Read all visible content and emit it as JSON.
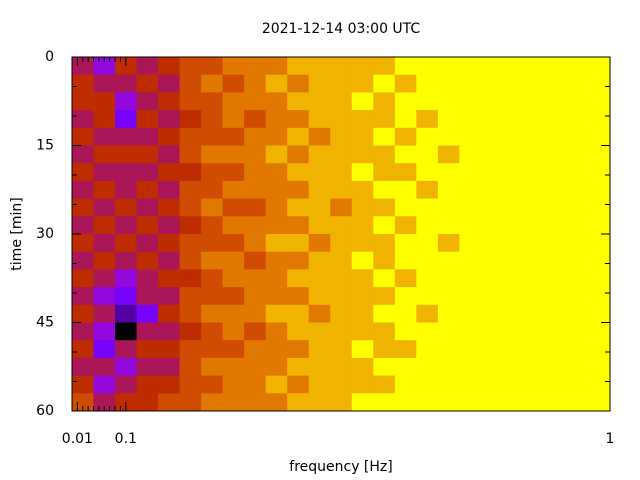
{
  "chart_data": {
    "type": "heatmap",
    "title": "2021-12-14 03:00 UTC",
    "x_label": "frequency [Hz]",
    "y_label": "time [min]",
    "xlim": [
      0,
      1
    ],
    "xticks": [
      0.01,
      0.1,
      1
    ],
    "xminorticks": [
      0.02,
      0.03,
      0.04,
      0.05,
      0.06,
      0.07,
      0.08,
      0.09
    ],
    "ylim": [
      60,
      0
    ],
    "yticks": [
      0,
      15,
      30,
      45,
      60
    ],
    "yminorticks": [
      5,
      10,
      20,
      25,
      35,
      40,
      50,
      55
    ],
    "xbins": [
      0,
      0.04,
      0.08,
      0.12,
      0.16,
      0.2,
      0.24,
      0.28,
      0.32,
      0.36,
      0.4,
      0.44,
      0.48,
      0.52,
      0.56,
      0.6,
      0.64,
      0.68,
      0.72,
      0.76,
      0.8,
      0.84,
      0.88,
      0.92,
      0.96,
      1
    ],
    "ybins": [
      0,
      3,
      6,
      9,
      12,
      15,
      18,
      21,
      24,
      27,
      30,
      33,
      36,
      39,
      42,
      45,
      48,
      51,
      54,
      57,
      60
    ],
    "z": [
      [
        4,
        3,
        5,
        4,
        5,
        6,
        6,
        7,
        7,
        7,
        8,
        8,
        8,
        8,
        8,
        9,
        9,
        9,
        9,
        9,
        9,
        9,
        9,
        9,
        9
      ],
      [
        5,
        4,
        4,
        5,
        4,
        6,
        7,
        6,
        7,
        8,
        7,
        8,
        8,
        8,
        9,
        8,
        9,
        9,
        9,
        9,
        9,
        9,
        9,
        9,
        9
      ],
      [
        5,
        5,
        3,
        4,
        5,
        6,
        6,
        7,
        7,
        7,
        8,
        8,
        8,
        9,
        8,
        9,
        9,
        9,
        9,
        9,
        9,
        9,
        9,
        9,
        9
      ],
      [
        4,
        5,
        2,
        5,
        4,
        5,
        6,
        7,
        6,
        7,
        7,
        8,
        8,
        8,
        8,
        9,
        8,
        9,
        9,
        9,
        9,
        9,
        9,
        9,
        9
      ],
      [
        5,
        4,
        4,
        4,
        5,
        6,
        6,
        6,
        7,
        7,
        8,
        7,
        8,
        8,
        9,
        8,
        9,
        9,
        9,
        9,
        9,
        9,
        9,
        9,
        9
      ],
      [
        4,
        5,
        5,
        5,
        4,
        6,
        7,
        7,
        7,
        8,
        7,
        8,
        8,
        8,
        8,
        9,
        9,
        8,
        9,
        9,
        9,
        9,
        9,
        9,
        9
      ],
      [
        5,
        4,
        4,
        4,
        5,
        5,
        6,
        6,
        7,
        7,
        8,
        8,
        8,
        9,
        8,
        8,
        9,
        9,
        9,
        9,
        9,
        9,
        9,
        9,
        9
      ],
      [
        4,
        5,
        4,
        5,
        4,
        6,
        6,
        7,
        7,
        7,
        7,
        8,
        8,
        8,
        9,
        9,
        8,
        9,
        9,
        9,
        9,
        9,
        9,
        9,
        9
      ],
      [
        5,
        4,
        5,
        4,
        5,
        6,
        7,
        6,
        6,
        7,
        8,
        8,
        7,
        8,
        8,
        9,
        9,
        9,
        9,
        9,
        9,
        9,
        9,
        9,
        9
      ],
      [
        4,
        5,
        4,
        5,
        4,
        5,
        6,
        7,
        7,
        7,
        7,
        8,
        8,
        8,
        9,
        8,
        9,
        9,
        9,
        9,
        9,
        9,
        9,
        9,
        9
      ],
      [
        5,
        4,
        5,
        4,
        5,
        6,
        6,
        6,
        7,
        8,
        8,
        7,
        8,
        8,
        8,
        9,
        9,
        8,
        9,
        9,
        9,
        9,
        9,
        9,
        9
      ],
      [
        4,
        5,
        4,
        5,
        4,
        6,
        7,
        7,
        6,
        7,
        7,
        8,
        8,
        9,
        8,
        9,
        9,
        9,
        9,
        9,
        9,
        9,
        9,
        9,
        9
      ],
      [
        5,
        4,
        3,
        4,
        5,
        5,
        6,
        7,
        7,
        7,
        8,
        8,
        8,
        8,
        9,
        8,
        9,
        9,
        9,
        9,
        9,
        9,
        9,
        9,
        9
      ],
      [
        4,
        3,
        2,
        4,
        4,
        6,
        6,
        6,
        7,
        7,
        7,
        8,
        8,
        8,
        8,
        9,
        9,
        9,
        9,
        9,
        9,
        9,
        9,
        9,
        9
      ],
      [
        5,
        4,
        1,
        2,
        5,
        6,
        7,
        7,
        7,
        8,
        8,
        7,
        8,
        8,
        9,
        9,
        8,
        9,
        9,
        9,
        9,
        9,
        9,
        9,
        9
      ],
      [
        4,
        3,
        0,
        4,
        4,
        5,
        6,
        7,
        6,
        7,
        8,
        8,
        8,
        8,
        8,
        9,
        9,
        9,
        9,
        9,
        9,
        9,
        9,
        9,
        9
      ],
      [
        5,
        2,
        4,
        5,
        5,
        6,
        6,
        6,
        7,
        7,
        7,
        8,
        8,
        9,
        8,
        8,
        9,
        9,
        9,
        9,
        9,
        9,
        9,
        9,
        9
      ],
      [
        4,
        4,
        3,
        4,
        4,
        6,
        7,
        7,
        7,
        7,
        8,
        8,
        8,
        8,
        9,
        9,
        9,
        9,
        9,
        9,
        9,
        9,
        9,
        9,
        9
      ],
      [
        5,
        3,
        4,
        5,
        5,
        6,
        6,
        7,
        7,
        8,
        7,
        8,
        8,
        8,
        8,
        9,
        9,
        9,
        9,
        9,
        9,
        9,
        9,
        9,
        9
      ],
      [
        6,
        4,
        5,
        5,
        6,
        6,
        7,
        7,
        7,
        7,
        8,
        8,
        8,
        9,
        9,
        9,
        9,
        9,
        9,
        9,
        9,
        9,
        9,
        9,
        9
      ]
    ]
  }
}
